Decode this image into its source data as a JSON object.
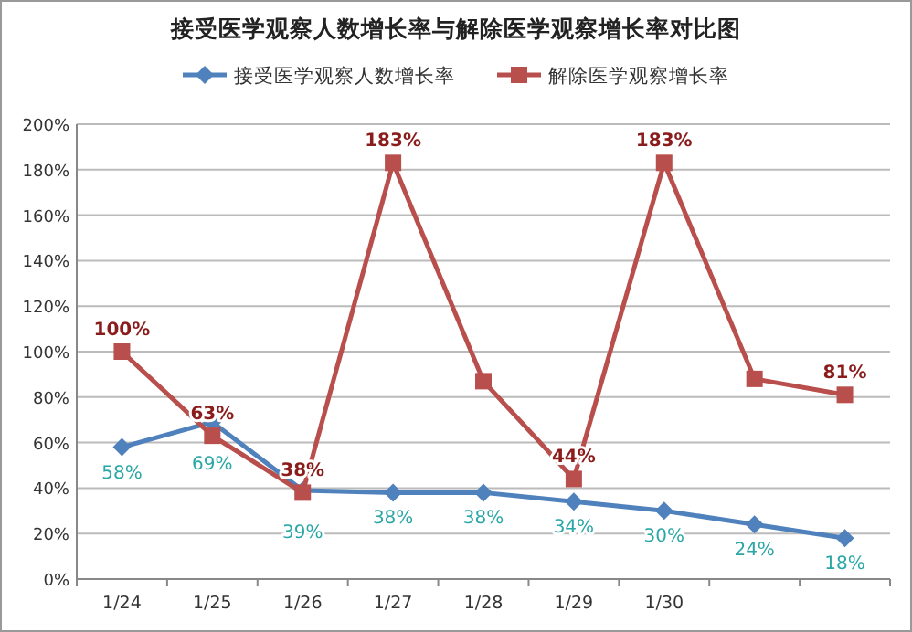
{
  "chart_data": {
    "type": "line",
    "title": "接受医学观察人数增长率与解除医学观察增长率对比图",
    "categories": [
      "1/24",
      "1/25",
      "1/26",
      "1/27",
      "1/28",
      "1/29",
      "1/30",
      null,
      null
    ],
    "series": [
      {
        "name": "接受医学观察人数增长率",
        "color": "#4f81bd",
        "marker": "diamond",
        "values": [
          58,
          69,
          39,
          38,
          38,
          34,
          30,
          24,
          18
        ],
        "value_labels": [
          "58%",
          "69%",
          "39%",
          "38%",
          "38%",
          "34%",
          "30%",
          "24%",
          "18%"
        ]
      },
      {
        "name": "解除医学观察增长率",
        "color": "#b84f4c",
        "marker": "square",
        "values": [
          100,
          63,
          38,
          183,
          87,
          44,
          183,
          88,
          81
        ],
        "value_labels": [
          "100%",
          "63%",
          "38%",
          "183%",
          null,
          "44%",
          "183%",
          null,
          "81%"
        ]
      }
    ],
    "ylim": [
      0,
      200
    ],
    "yticks": [
      {
        "value": 0,
        "label": "0%"
      },
      {
        "value": 20,
        "label": "20%"
      },
      {
        "value": 40,
        "label": "40%"
      },
      {
        "value": 60,
        "label": "60%"
      },
      {
        "value": 80,
        "label": "80%"
      },
      {
        "value": 100,
        "label": "100%"
      },
      {
        "value": 120,
        "label": "120%"
      },
      {
        "value": 140,
        "label": "140%"
      },
      {
        "value": 160,
        "label": "160%"
      },
      {
        "value": 180,
        "label": "180%"
      },
      {
        "value": 200,
        "label": "200%"
      }
    ],
    "grid": "y",
    "legend": "top"
  }
}
